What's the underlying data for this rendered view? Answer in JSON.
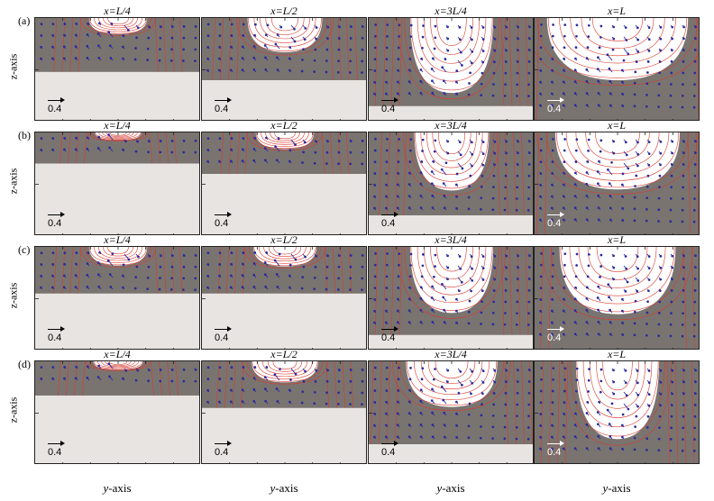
{
  "row_labels": [
    "(a)",
    "(b)",
    "(c)",
    "(d)"
  ],
  "column_titles": [
    "x=L/4",
    "x=L/2",
    "x=3L/4",
    "x=L"
  ],
  "z_axis_label": "z-axis",
  "y_axis_prefix": "y",
  "y_axis_suffix": "-axis",
  "scale_value": "0.4",
  "colors": {
    "background": "#ffffff",
    "fluid_gray": "#7a7470",
    "solid_light": "#e8e4e1",
    "interface_white": "#ffffff",
    "contour_red": "#d83a2e",
    "vector_blue": "#2a2a9c"
  },
  "panels": [
    [
      {
        "level": 0.52,
        "width": 0.35,
        "depth": 0.3
      },
      {
        "level": 0.6,
        "width": 0.45,
        "depth": 0.55
      },
      {
        "level": 0.85,
        "width": 0.5,
        "depth": 0.85
      },
      {
        "level": 1.0,
        "width": 0.85,
        "depth": 0.6
      }
    ],
    [
      {
        "level": 0.3,
        "width": 0.28,
        "depth": 0.25
      },
      {
        "level": 0.4,
        "width": 0.35,
        "depth": 0.4
      },
      {
        "level": 0.8,
        "width": 0.45,
        "depth": 0.7
      },
      {
        "level": 1.0,
        "width": 0.75,
        "depth": 0.55
      }
    ],
    [
      {
        "level": 0.45,
        "width": 0.35,
        "depth": 0.4
      },
      {
        "level": 0.45,
        "width": 0.38,
        "depth": 0.42
      },
      {
        "level": 0.85,
        "width": 0.5,
        "depth": 0.75
      },
      {
        "level": 1.0,
        "width": 0.7,
        "depth": 0.65
      }
    ],
    [
      {
        "level": 0.33,
        "width": 0.3,
        "depth": 0.25
      },
      {
        "level": 0.45,
        "width": 0.4,
        "depth": 0.45
      },
      {
        "level": 0.8,
        "width": 0.55,
        "depth": 0.55
      },
      {
        "level": 1.0,
        "width": 0.5,
        "depth": 0.75
      }
    ]
  ]
}
